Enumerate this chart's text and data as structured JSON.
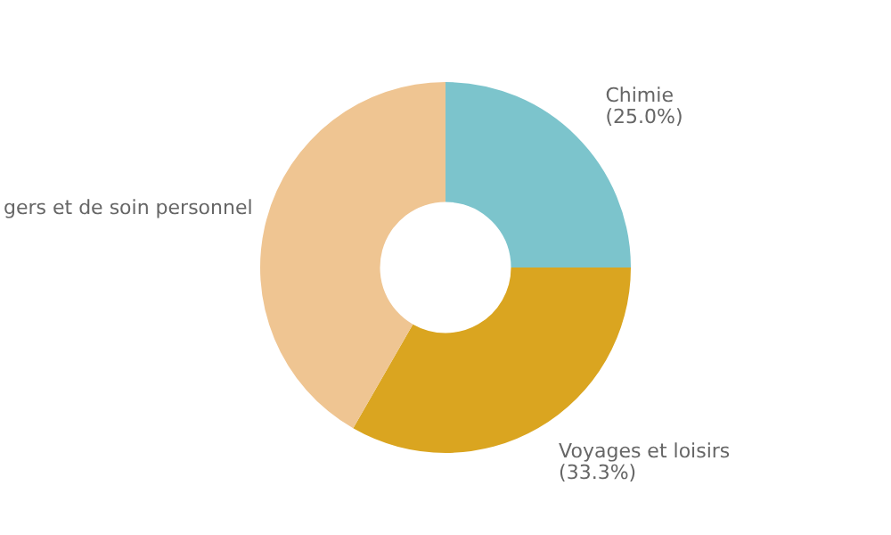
{
  "chart_data": {
    "type": "donut",
    "categories": [
      "Chimie",
      "Voyages et loisirs",
      "gers et de soin personnel"
    ],
    "values": [
      25.0,
      33.3,
      41.7
    ],
    "colors": [
      "#7cc4cc",
      "#daa520",
      "#efc592"
    ],
    "value_labels": [
      "(25.0%)",
      "(33.3%)",
      null
    ],
    "legend": false
  }
}
